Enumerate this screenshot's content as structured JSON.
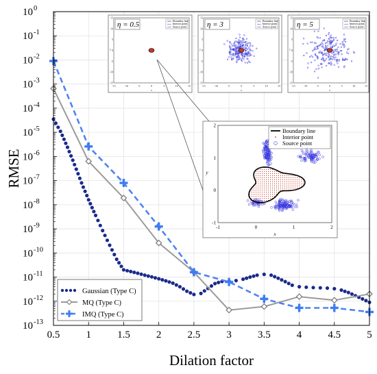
{
  "chart_data": {
    "type": "line",
    "xlabel": "Dilation factor",
    "ylabel": "RMSE",
    "y_scale": "log",
    "xlim": [
      0.5,
      5
    ],
    "ylim": [
      1e-13,
      1
    ],
    "x_ticks": [
      "0.5",
      "1",
      "1.5",
      "2",
      "2.5",
      "3",
      "3.5",
      "4",
      "4.5",
      "5"
    ],
    "y_ticks": [
      {
        "base": "10",
        "exp": "0"
      },
      {
        "base": "10",
        "exp": "-1"
      },
      {
        "base": "10",
        "exp": "-2"
      },
      {
        "base": "10",
        "exp": "-3"
      },
      {
        "base": "10",
        "exp": "-4"
      },
      {
        "base": "10",
        "exp": "-5"
      },
      {
        "base": "10",
        "exp": "-6"
      },
      {
        "base": "10",
        "exp": "-7"
      },
      {
        "base": "10",
        "exp": "-8"
      },
      {
        "base": "10",
        "exp": "-9"
      },
      {
        "base": "10",
        "exp": "-10"
      },
      {
        "base": "10",
        "exp": "-11"
      },
      {
        "base": "10",
        "exp": "-12"
      },
      {
        "base": "10",
        "exp": "-13"
      }
    ],
    "grid": true,
    "legend_position": "bottom-left",
    "series": [
      {
        "name": "Gaussian (Type C)",
        "color": "#1a2a8c",
        "style": "dotted",
        "x": [
          0.5,
          0.6,
          0.7,
          0.8,
          0.9,
          1.0,
          1.1,
          1.2,
          1.3,
          1.4,
          1.5,
          1.6,
          1.7,
          1.8,
          1.9,
          2.0,
          2.1,
          2.2,
          2.3,
          2.4,
          2.5,
          2.6,
          2.7,
          2.8,
          2.9,
          3.0,
          3.1,
          3.2,
          3.3,
          3.4,
          3.5,
          3.6,
          3.7,
          3.8,
          3.9,
          4.0,
          4.1,
          4.2,
          4.3,
          4.4,
          4.5,
          4.6,
          4.7,
          4.8,
          4.9,
          5.0
        ],
        "y": [
          3.5e-05,
          1.1e-05,
          2.4e-06,
          4.6e-07,
          8e-08,
          1.6e-08,
          3.6e-09,
          8.5e-10,
          2.1e-10,
          5.5e-11,
          2e-11,
          1.7e-11,
          1.45e-11,
          1.2e-11,
          1.02e-11,
          8.5e-12,
          7e-12,
          5.6e-12,
          4e-12,
          2.6e-12,
          1.9e-12,
          2.1e-12,
          3.4e-12,
          5.4e-12,
          6.6e-12,
          6.8e-12,
          7.2e-12,
          8.2e-12,
          1e-11,
          1.2e-11,
          1.3e-11,
          1.2e-11,
          9e-12,
          6.5e-12,
          4.6e-12,
          4e-12,
          3.8e-12,
          3.7e-12,
          3.6e-12,
          3.5e-12,
          3.3e-12,
          2.9e-12,
          2.3e-12,
          1.7e-12,
          1.25e-12,
          9e-13
        ]
      },
      {
        "name": "MQ (Type C)",
        "color": "#9a9a9a",
        "style": "solid-diamond",
        "x": [
          0.5,
          1,
          1.5,
          2,
          2.5,
          3,
          3.5,
          4,
          4.5,
          5
        ],
        "y": [
          0.00065,
          6.3e-07,
          1.9e-08,
          2.6e-10,
          1.6e-11,
          4.3e-13,
          6e-13,
          1.55e-12,
          1.1e-12,
          2e-12
        ]
      },
      {
        "name": "IMQ (Type C)",
        "color": "#4f84f0",
        "style": "dashed-plus",
        "x": [
          0.5,
          1,
          1.5,
          2,
          2.5,
          3,
          3.5,
          4,
          4.5,
          5
        ],
        "y": [
          0.009,
          2.6e-06,
          8e-08,
          1.25e-09,
          1.6e-11,
          6.3e-12,
          1.25e-12,
          5.3e-13,
          5.3e-13,
          3.6e-13
        ]
      }
    ],
    "insets": {
      "small_panels": [
        {
          "eta_label": "η = 0.5",
          "legend": [
            "Boundary line",
            "Interior point",
            "Source point"
          ]
        },
        {
          "eta_label": "η = 3",
          "legend": [
            "Boundary line",
            "Interior point",
            "Source point"
          ]
        },
        {
          "eta_label": "η = 5",
          "legend": [
            "Boundary line",
            "Interior point",
            "Source point"
          ]
        }
      ],
      "small_panel_ticks": [
        "-15",
        "-10",
        "-5",
        "0",
        "5",
        "10",
        "15"
      ],
      "small_panel_axis_labels": {
        "x": "x",
        "y": "y"
      },
      "zoom_panel": {
        "legend": [
          "Boundary line",
          "Interior point",
          "Source point"
        ],
        "x_ticks": [
          "-1",
          "0",
          "1",
          "2"
        ],
        "y_ticks": [
          "2",
          "1",
          "0",
          "-1"
        ],
        "xlabel": "x",
        "ylabel": "y"
      }
    }
  }
}
